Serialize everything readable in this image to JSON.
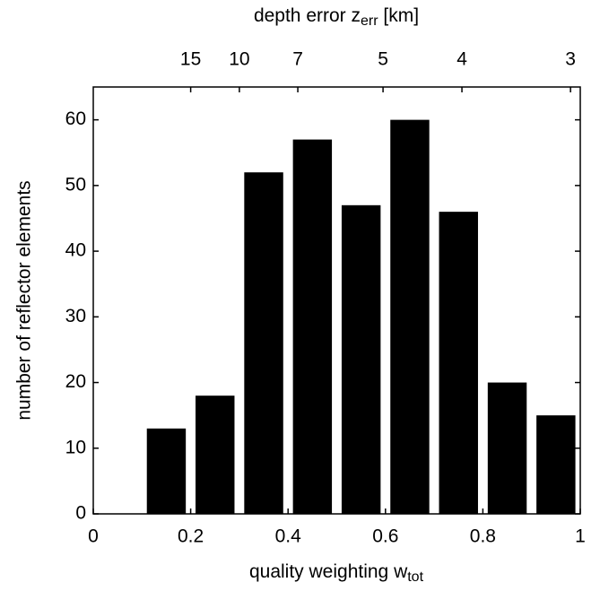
{
  "chart_data": {
    "type": "bar",
    "x2label_main": "depth error z",
    "x2label_sub": "err",
    "x2label_end": " [km]",
    "xlabel_main": "quality weighting w",
    "xlabel_sub": "tot",
    "ylabel": "number of reflector elements",
    "x": [
      0.15,
      0.25,
      0.35,
      0.45,
      0.55,
      0.65,
      0.75,
      0.85,
      0.95
    ],
    "values": [
      13,
      18,
      52,
      57,
      47,
      60,
      46,
      20,
      15
    ],
    "bar_width": 0.08,
    "color": "#000000",
    "xlim": [
      0,
      1
    ],
    "xticks": [
      0,
      0.2,
      0.4,
      0.6,
      0.8,
      1
    ],
    "x2ticks": [
      {
        "value": 0.2,
        "label": "15"
      },
      {
        "value": 0.3,
        "label": "10"
      },
      {
        "value": 0.42,
        "label": "7"
      },
      {
        "value": 0.595,
        "label": "5"
      },
      {
        "value": 0.757,
        "label": "4"
      },
      {
        "value": 0.98,
        "label": "3"
      }
    ],
    "ylim": [
      0,
      65
    ],
    "yticks": [
      0,
      10,
      20,
      30,
      40,
      50,
      60
    ],
    "grid": false
  }
}
